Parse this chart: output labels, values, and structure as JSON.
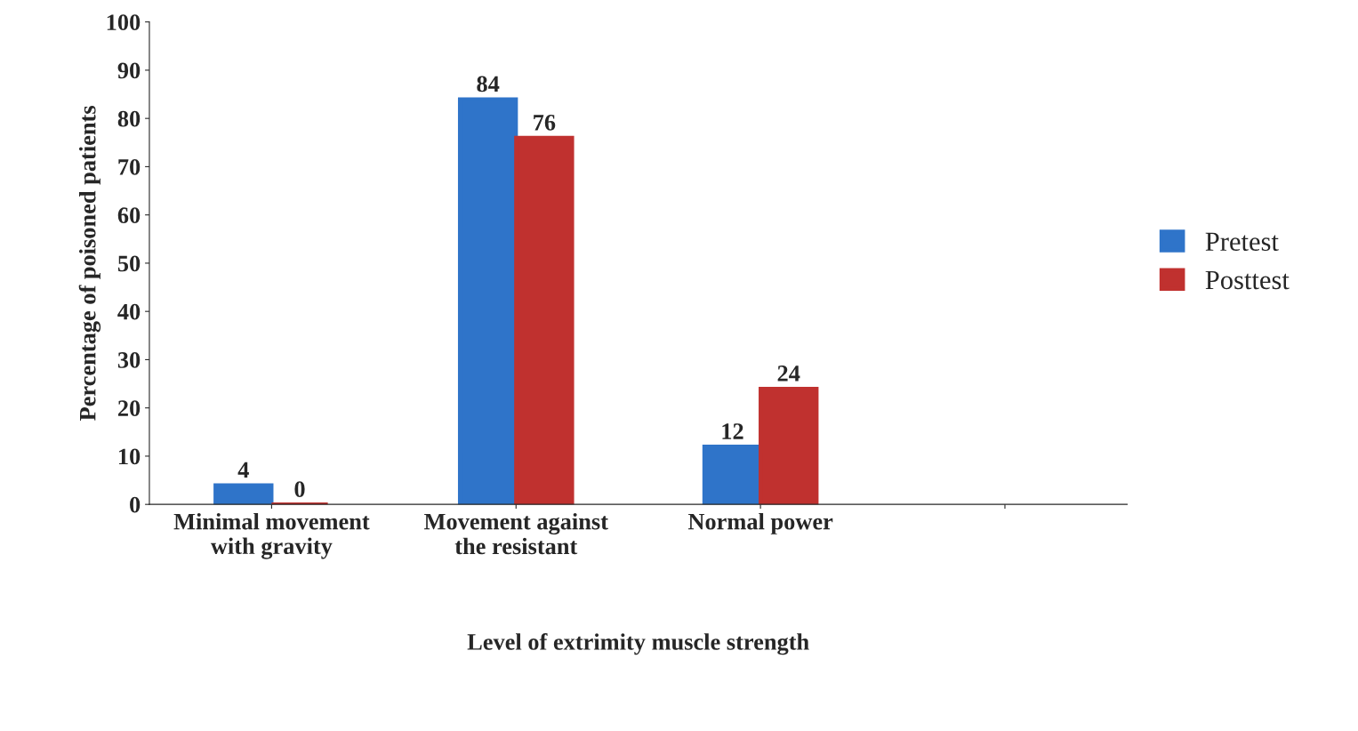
{
  "chart_data": {
    "type": "bar",
    "xlabel": "Level of extrimity muscle strength",
    "ylabel": "Percentage of poisoned patients",
    "categories": [
      "Minimal movement with gravity",
      "Movement against the resistant",
      "Normal power",
      null
    ],
    "series": [
      {
        "name": "Pretest",
        "color": "#2f74c9",
        "values": [
          4,
          84,
          12,
          null
        ]
      },
      {
        "name": "Posttest",
        "color": "#c0312f",
        "values": [
          0,
          76,
          24,
          null
        ]
      }
    ],
    "ylim": [
      0,
      100
    ],
    "yticks": [
      0,
      10,
      20,
      30,
      40,
      50,
      60,
      70,
      80,
      90,
      100
    ],
    "grid": false,
    "legend": "right",
    "data_labels": true
  }
}
